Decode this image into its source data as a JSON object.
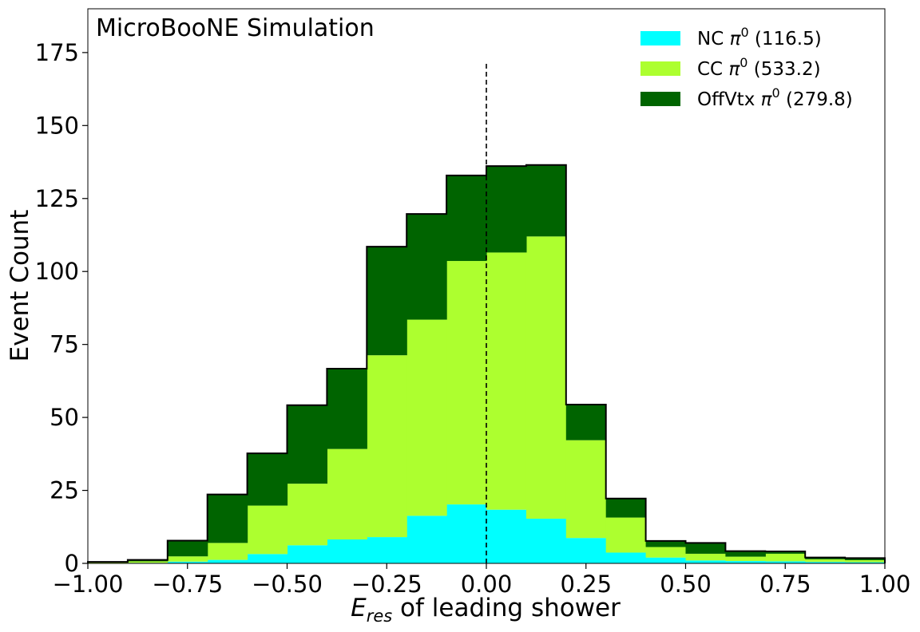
{
  "chart_data": {
    "type": "bar",
    "stacked": true,
    "histogram": true,
    "annotation": "MicroBooNE Simulation",
    "xlabel_math": "E",
    "xlabel_sub": "res",
    "xlabel_rest": " of leading shower",
    "ylabel": "Event Count",
    "xlim": [
      -1.0,
      1.0
    ],
    "ylim": [
      0,
      190
    ],
    "xticks": [
      -1.0,
      -0.75,
      -0.5,
      -0.25,
      0.0,
      0.25,
      0.5,
      0.75,
      1.0
    ],
    "xtick_labels": [
      "−1.00",
      "−0.75",
      "−0.50",
      "−0.25",
      "0.00",
      "0.25",
      "0.50",
      "0.75",
      "1.00"
    ],
    "yticks": [
      0,
      25,
      50,
      75,
      100,
      125,
      150,
      175
    ],
    "ytick_labels": [
      "0",
      "25",
      "50",
      "75",
      "100",
      "125",
      "150",
      "175"
    ],
    "bin_edges": [
      -1.0,
      -0.9,
      -0.8,
      -0.7,
      -0.6,
      -0.5,
      -0.4,
      -0.3,
      -0.2,
      -0.1,
      0.0,
      0.1,
      0.2,
      0.3,
      0.4,
      0.5,
      0.6,
      0.7,
      0.8,
      0.9,
      1.0
    ],
    "series": [
      {
        "name": "NC",
        "symbol": "π",
        "sup": "0",
        "count": "(116.5)",
        "color": "#00ffff",
        "values": [
          0.1,
          0.2,
          0.6,
          1.2,
          3.2,
          6.2,
          8.2,
          9.0,
          16.3,
          20.2,
          18.4,
          15.3,
          8.7,
          3.7,
          2.0,
          1.0,
          0.8,
          0.7,
          0.5,
          0.4
        ]
      },
      {
        "name": "CC",
        "symbol": "π",
        "sup": "0",
        "count": "(533.2)",
        "color": "#adff2f",
        "values": [
          0.2,
          0.5,
          1.8,
          5.8,
          16.6,
          21.1,
          31.0,
          62.3,
          67.2,
          83.4,
          88.1,
          96.7,
          33.5,
          12.0,
          3.6,
          2.3,
          1.5,
          2.6,
          0.9,
          0.7
        ]
      },
      {
        "name": "OffVtx",
        "symbol": "π",
        "sup": "0",
        "count": "(279.8)",
        "color": "#006400",
        "values": [
          0.2,
          0.5,
          5.4,
          16.6,
          17.9,
          26.9,
          27.5,
          37.2,
          36.2,
          29.3,
          29.6,
          24.5,
          12.2,
          6.5,
          2.1,
          3.7,
          1.9,
          0.8,
          0.6,
          0.7
        ]
      }
    ],
    "reference_line": {
      "x": 0.0,
      "y_top": 171.5,
      "style": "dashed"
    },
    "legend_position": "top-right",
    "grid": false
  }
}
